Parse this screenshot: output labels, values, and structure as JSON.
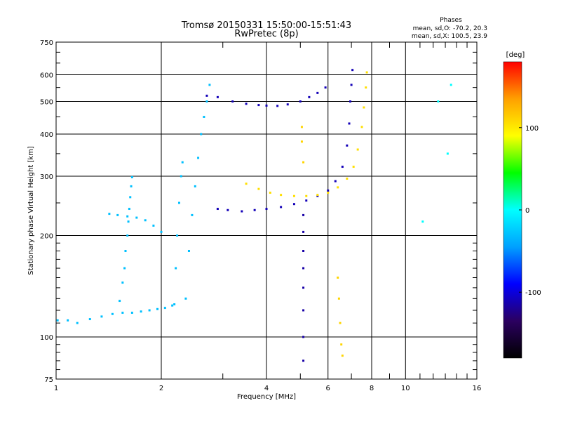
{
  "chart_data": {
    "type": "scatter",
    "title": "Tromsø 20150331 15:50:00-15:51:43",
    "subtitle": "RwPretec (8p)",
    "phase_box": {
      "heading": "Phases",
      "line_o": "mean, sd,O: -70.2, 20.3",
      "line_x": "mean, sd,X: 100.5, 23.9"
    },
    "xlabel": "Frequency [MHz]",
    "ylabel": "Stationary phase Virtual Height [km]",
    "x_scale": "log",
    "y_scale": "log",
    "xlim": [
      1,
      16
    ],
    "ylim": [
      75,
      750
    ],
    "x_ticks": [
      1,
      2,
      4,
      6,
      8,
      10,
      16
    ],
    "x_tick_labels": [
      "1",
      "2",
      "4",
      "6",
      "8",
      "10",
      "16"
    ],
    "y_ticks": [
      75,
      100,
      200,
      300,
      400,
      500,
      600,
      750
    ],
    "y_tick_labels": [
      "75",
      "100",
      "200",
      "300",
      "400",
      "500",
      "600",
      "750"
    ],
    "grid": true,
    "colorbar": {
      "label": "[deg]",
      "range": [
        -180,
        180
      ],
      "ticks": [
        100,
        0,
        -100
      ],
      "tick_labels": [
        "100",
        "0",
        "-100"
      ],
      "stops": [
        "#000000",
        "#2b0060",
        "#0000ff",
        "#00a0ff",
        "#00ffff",
        "#00ff00",
        "#ffff00",
        "#ffa000",
        "#ff0000"
      ]
    },
    "traces": [
      {
        "name": "",
        "phase": -30,
        "points": [
          [
            1.01,
            112
          ],
          [
            1.08,
            112
          ],
          [
            1.15,
            110
          ],
          [
            1.25,
            113
          ],
          [
            1.35,
            115
          ],
          [
            1.45,
            117
          ],
          [
            1.55,
            118
          ],
          [
            1.65,
            118
          ],
          [
            1.75,
            119
          ],
          [
            1.85,
            120
          ],
          [
            1.95,
            121
          ],
          [
            2.05,
            122
          ],
          [
            2.15,
            124
          ]
        ]
      },
      {
        "name": "",
        "phase": -30,
        "points": [
          [
            1.52,
            128
          ],
          [
            1.55,
            145
          ],
          [
            1.57,
            160
          ],
          [
            1.58,
            180
          ],
          [
            1.6,
            200
          ],
          [
            1.61,
            220
          ],
          [
            1.62,
            240
          ],
          [
            1.63,
            260
          ],
          [
            1.64,
            280
          ],
          [
            1.65,
            298
          ]
        ]
      },
      {
        "name": "",
        "phase": -30,
        "points": [
          [
            1.42,
            232
          ],
          [
            1.5,
            230
          ],
          [
            1.6,
            228
          ],
          [
            1.7,
            226
          ],
          [
            1.8,
            222
          ],
          [
            1.9,
            214
          ],
          [
            2.0,
            205
          ]
        ]
      },
      {
        "name": "",
        "phase": -30,
        "points": [
          [
            2.18,
            125
          ],
          [
            2.2,
            160
          ],
          [
            2.22,
            200
          ],
          [
            2.25,
            250
          ],
          [
            2.28,
            300
          ],
          [
            2.3,
            330
          ]
        ]
      },
      {
        "name": "",
        "phase": -30,
        "points": [
          [
            2.35,
            130
          ],
          [
            2.4,
            180
          ],
          [
            2.45,
            230
          ],
          [
            2.5,
            280
          ],
          [
            2.55,
            340
          ],
          [
            2.6,
            400
          ],
          [
            2.65,
            450
          ],
          [
            2.7,
            500
          ],
          [
            2.75,
            560
          ]
        ]
      },
      {
        "name": "",
        "phase": -110,
        "points": [
          [
            2.9,
            240
          ],
          [
            3.1,
            238
          ],
          [
            3.4,
            236
          ],
          [
            3.7,
            238
          ],
          [
            4.0,
            240
          ],
          [
            4.4,
            243
          ],
          [
            4.8,
            248
          ],
          [
            5.2,
            254
          ],
          [
            5.6,
            262
          ],
          [
            6.0,
            272
          ],
          [
            6.3,
            290
          ],
          [
            6.6,
            320
          ],
          [
            6.8,
            370
          ],
          [
            6.9,
            430
          ],
          [
            6.95,
            500
          ],
          [
            7.0,
            560
          ],
          [
            7.05,
            620
          ]
        ]
      },
      {
        "name": "",
        "phase": -110,
        "points": [
          [
            2.7,
            520
          ],
          [
            2.9,
            515
          ],
          [
            3.2,
            500
          ],
          [
            3.5,
            492
          ],
          [
            3.8,
            488
          ],
          [
            4.0,
            486
          ],
          [
            4.3,
            485
          ],
          [
            4.6,
            490
          ],
          [
            5.0,
            500
          ],
          [
            5.3,
            515
          ],
          [
            5.6,
            530
          ],
          [
            5.9,
            550
          ]
        ]
      },
      {
        "name": "",
        "phase": 105,
        "points": [
          [
            3.5,
            285
          ],
          [
            3.8,
            275
          ],
          [
            4.1,
            268
          ],
          [
            4.4,
            264
          ],
          [
            4.8,
            262
          ],
          [
            5.2,
            262
          ],
          [
            5.6,
            264
          ],
          [
            6.0,
            268
          ],
          [
            6.4,
            278
          ],
          [
            6.8,
            295
          ],
          [
            7.1,
            320
          ],
          [
            7.3,
            360
          ],
          [
            7.5,
            420
          ],
          [
            7.6,
            480
          ],
          [
            7.7,
            550
          ],
          [
            7.75,
            610
          ]
        ]
      },
      {
        "name": "",
        "phase": -115,
        "points": [
          [
            5.1,
            230
          ],
          [
            5.1,
            205
          ],
          [
            5.1,
            180
          ],
          [
            5.1,
            160
          ],
          [
            5.1,
            140
          ],
          [
            5.1,
            120
          ],
          [
            5.1,
            100
          ],
          [
            5.1,
            85
          ]
        ]
      },
      {
        "name": "",
        "phase": 110,
        "points": [
          [
            5.05,
            420
          ],
          [
            5.05,
            380
          ],
          [
            5.1,
            330
          ],
          [
            6.4,
            150
          ],
          [
            6.45,
            130
          ],
          [
            6.5,
            110
          ],
          [
            6.55,
            95
          ],
          [
            6.6,
            88
          ]
        ]
      },
      {
        "name": "",
        "phase": 0,
        "points": [
          [
            13.5,
            560
          ],
          [
            12.4,
            500
          ],
          [
            13.2,
            350
          ],
          [
            11.2,
            220
          ]
        ]
      }
    ]
  }
}
